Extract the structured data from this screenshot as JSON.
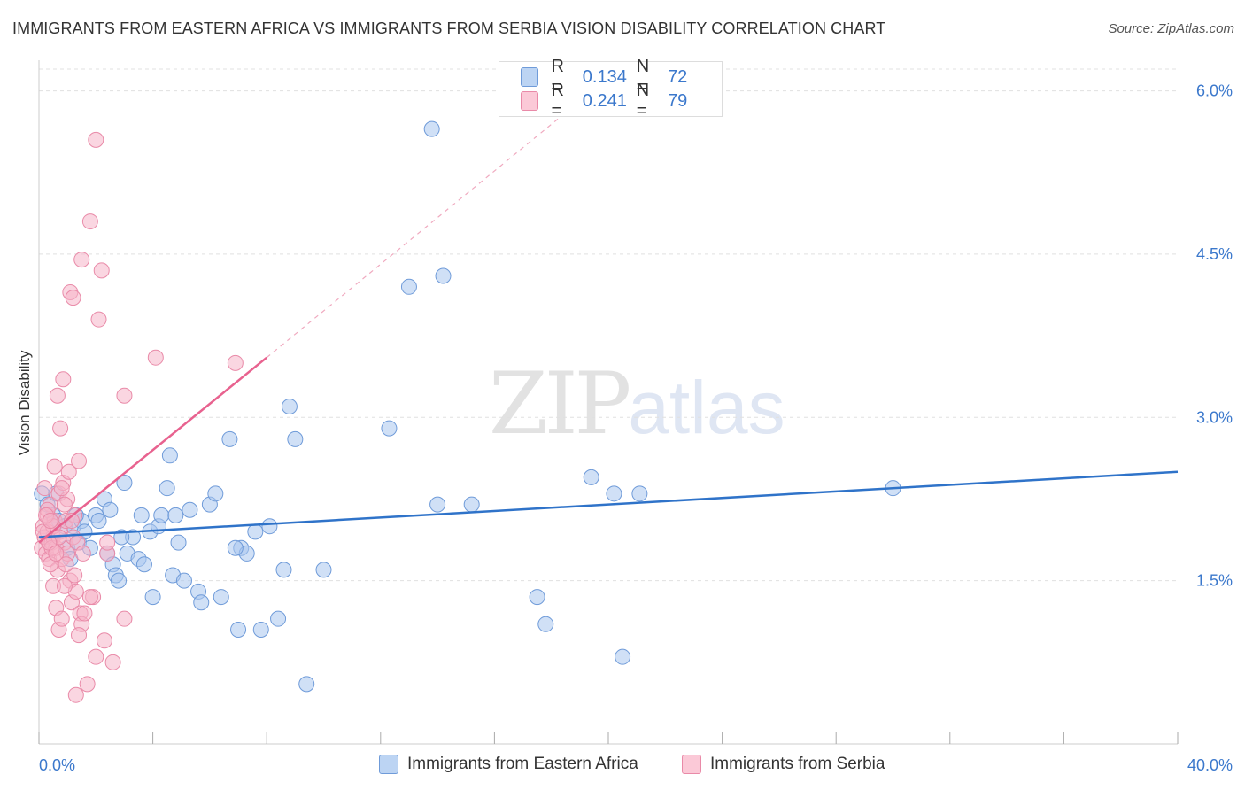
{
  "title": "IMMIGRANTS FROM EASTERN AFRICA VS IMMIGRANTS FROM SERBIA VISION DISABILITY CORRELATION CHART",
  "source": "Source: ZipAtlas.com",
  "watermark": {
    "zip": "ZIP",
    "atlas": "atlas"
  },
  "legend": {
    "rows": [
      {
        "r_label": "R =",
        "r_value": "0.134",
        "n_label": "N =",
        "n_value": "72"
      },
      {
        "r_label": "R =",
        "r_value": "0.241",
        "n_label": "N =",
        "n_value": "79"
      }
    ]
  },
  "colors": {
    "blue_fill": "#a9c6ee",
    "blue_stroke": "#6f9bd9",
    "blue_line": "#2f73c9",
    "pink_fill": "#f6b5c8",
    "pink_stroke": "#e98aa8",
    "pink_line": "#e8628f",
    "grid": "#e0e0e0",
    "axis_text": "#3b78cc"
  },
  "chart_data": {
    "type": "scatter",
    "title": "IMMIGRANTS FROM EASTERN AFRICA VS IMMIGRANTS FROM SERBIA VISION DISABILITY CORRELATION CHART",
    "xlabel": "",
    "ylabel": "Vision Disability",
    "xlim": [
      0,
      40
    ],
    "ylim": [
      0,
      6.2
    ],
    "x_tick_labels": [
      "0.0%",
      "40.0%"
    ],
    "y_ticks": [
      1.5,
      3.0,
      4.5,
      6.0
    ],
    "y_tick_labels": [
      "1.5%",
      "3.0%",
      "4.5%",
      "6.0%"
    ],
    "grid": true,
    "series": [
      {
        "name": "Immigrants from Eastern Africa",
        "color": "#6f9bd9",
        "trend": {
          "x": [
            0,
            40
          ],
          "y": [
            1.9,
            2.5
          ],
          "style": "solid"
        },
        "points": [
          [
            0.1,
            2.3
          ],
          [
            0.3,
            2.2
          ],
          [
            0.5,
            2.1
          ],
          [
            0.7,
            2.05
          ],
          [
            0.9,
            2.0
          ],
          [
            1.0,
            1.8
          ],
          [
            1.1,
            1.7
          ],
          [
            1.2,
            2.0
          ],
          [
            1.4,
            1.85
          ],
          [
            1.5,
            2.05
          ],
          [
            1.6,
            1.95
          ],
          [
            1.8,
            1.8
          ],
          [
            2.0,
            2.1
          ],
          [
            2.1,
            2.05
          ],
          [
            2.3,
            2.25
          ],
          [
            2.4,
            1.75
          ],
          [
            2.6,
            1.65
          ],
          [
            2.7,
            1.55
          ],
          [
            2.8,
            1.5
          ],
          [
            3.0,
            2.4
          ],
          [
            3.1,
            1.75
          ],
          [
            3.3,
            1.9
          ],
          [
            3.5,
            1.7
          ],
          [
            3.6,
            2.1
          ],
          [
            3.9,
            1.95
          ],
          [
            4.0,
            1.35
          ],
          [
            4.2,
            2.0
          ],
          [
            4.3,
            2.1
          ],
          [
            4.5,
            2.35
          ],
          [
            4.6,
            2.65
          ],
          [
            4.7,
            1.55
          ],
          [
            4.9,
            1.85
          ],
          [
            5.1,
            1.5
          ],
          [
            5.3,
            2.15
          ],
          [
            5.6,
            1.4
          ],
          [
            5.7,
            1.3
          ],
          [
            6.0,
            2.2
          ],
          [
            6.2,
            2.3
          ],
          [
            6.4,
            1.35
          ],
          [
            6.7,
            2.8
          ],
          [
            7.0,
            1.05
          ],
          [
            7.1,
            1.8
          ],
          [
            7.3,
            1.75
          ],
          [
            7.6,
            1.95
          ],
          [
            7.8,
            1.05
          ],
          [
            8.1,
            2.0
          ],
          [
            8.4,
            1.15
          ],
          [
            8.6,
            1.6
          ],
          [
            8.8,
            3.1
          ],
          [
            9.0,
            2.8
          ],
          [
            9.4,
            0.55
          ],
          [
            10.0,
            1.6
          ],
          [
            12.3,
            2.9
          ],
          [
            13.0,
            4.2
          ],
          [
            13.8,
            5.65
          ],
          [
            14.0,
            2.2
          ],
          [
            14.2,
            4.3
          ],
          [
            15.2,
            2.2
          ],
          [
            17.5,
            1.35
          ],
          [
            17.8,
            1.1
          ],
          [
            19.4,
            2.45
          ],
          [
            20.2,
            2.3
          ],
          [
            20.5,
            0.8
          ],
          [
            21.1,
            2.3
          ],
          [
            30.0,
            2.35
          ],
          [
            2.5,
            2.15
          ],
          [
            3.7,
            1.65
          ],
          [
            1.3,
            2.1
          ],
          [
            0.6,
            2.3
          ],
          [
            2.9,
            1.9
          ],
          [
            4.8,
            2.1
          ],
          [
            6.9,
            1.8
          ]
        ]
      },
      {
        "name": "Immigrants from Serbia",
        "color": "#e98aa8",
        "trend": {
          "x": [
            0,
            8
          ],
          "y": [
            1.85,
            3.55
          ],
          "style": "solid",
          "dashed_extension": {
            "x": [
              8,
              18.5
            ],
            "y": [
              3.55,
              5.8
            ]
          }
        },
        "points": [
          [
            0.1,
            1.8
          ],
          [
            0.15,
            2.0
          ],
          [
            0.2,
            1.9
          ],
          [
            0.25,
            1.75
          ],
          [
            0.3,
            2.1
          ],
          [
            0.35,
            1.7
          ],
          [
            0.4,
            2.2
          ],
          [
            0.45,
            1.85
          ],
          [
            0.5,
            1.9
          ],
          [
            0.55,
            2.05
          ],
          [
            0.6,
            1.8
          ],
          [
            0.65,
            1.6
          ],
          [
            0.7,
            2.3
          ],
          [
            0.75,
            1.95
          ],
          [
            0.8,
            1.7
          ],
          [
            0.85,
            2.4
          ],
          [
            0.9,
            1.85
          ],
          [
            0.95,
            2.05
          ],
          [
            1.0,
            1.75
          ],
          [
            1.05,
            2.5
          ],
          [
            1.1,
            1.5
          ],
          [
            1.15,
            1.3
          ],
          [
            1.2,
            1.9
          ],
          [
            1.25,
            2.1
          ],
          [
            1.3,
            1.4
          ],
          [
            1.35,
            1.85
          ],
          [
            1.4,
            2.6
          ],
          [
            1.45,
            1.2
          ],
          [
            1.5,
            1.1
          ],
          [
            1.55,
            1.75
          ],
          [
            0.5,
            1.45
          ],
          [
            0.6,
            1.25
          ],
          [
            0.7,
            1.05
          ],
          [
            0.8,
            1.15
          ],
          [
            0.9,
            1.45
          ],
          [
            1.0,
            2.25
          ],
          [
            0.2,
            2.35
          ],
          [
            0.3,
            2.15
          ],
          [
            0.4,
            1.65
          ],
          [
            0.55,
            2.55
          ],
          [
            0.65,
            3.2
          ],
          [
            0.75,
            2.9
          ],
          [
            0.85,
            3.35
          ],
          [
            1.1,
            4.15
          ],
          [
            1.2,
            4.1
          ],
          [
            1.5,
            4.45
          ],
          [
            1.8,
            4.8
          ],
          [
            2.0,
            5.55
          ],
          [
            2.1,
            3.9
          ],
          [
            2.2,
            4.35
          ],
          [
            3.0,
            3.2
          ],
          [
            4.1,
            3.55
          ],
          [
            6.9,
            3.5
          ],
          [
            1.9,
            1.35
          ],
          [
            2.3,
            0.95
          ],
          [
            2.6,
            0.75
          ],
          [
            3.0,
            1.15
          ],
          [
            1.7,
            0.55
          ],
          [
            2.4,
            1.75
          ],
          [
            1.4,
            1.0
          ],
          [
            1.6,
            1.2
          ],
          [
            1.8,
            1.35
          ],
          [
            1.3,
            0.45
          ],
          [
            2.0,
            0.8
          ],
          [
            0.3,
            1.95
          ],
          [
            0.45,
            1.8
          ],
          [
            0.5,
            2.0
          ],
          [
            0.7,
            1.9
          ],
          [
            0.35,
            1.85
          ],
          [
            0.9,
            2.2
          ],
          [
            1.15,
            2.05
          ],
          [
            0.25,
            2.1
          ],
          [
            0.15,
            1.95
          ],
          [
            0.6,
            1.75
          ],
          [
            0.8,
            2.35
          ],
          [
            2.4,
            1.85
          ],
          [
            1.25,
            1.55
          ],
          [
            0.95,
            1.65
          ],
          [
            0.4,
            2.05
          ]
        ]
      }
    ],
    "legend_position": "top-center"
  }
}
